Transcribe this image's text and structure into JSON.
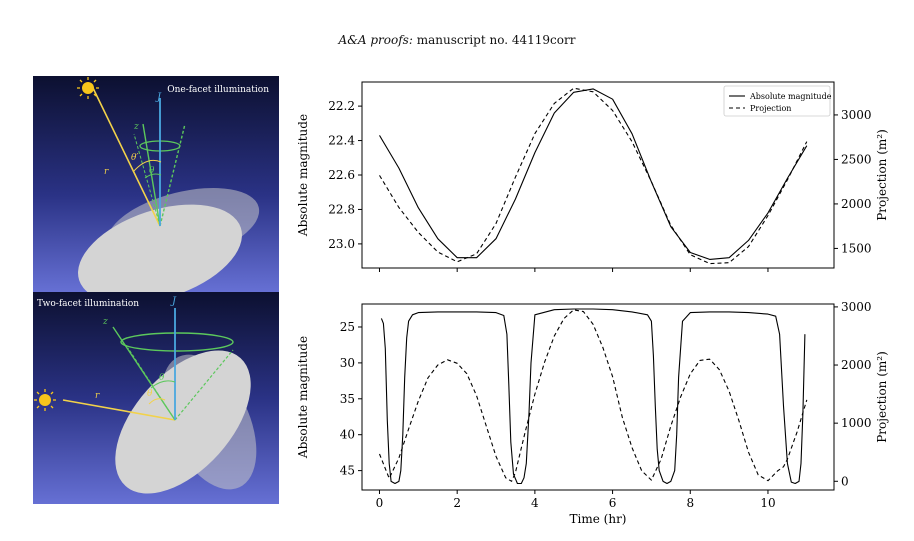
{
  "header": {
    "journal": "A&A proofs:",
    "manuscript": "manuscript no. 44119corr"
  },
  "illustrations": {
    "top": {
      "title": "One-facet illumination",
      "sun_vec": "r",
      "facet_vec": "z",
      "spin_vec": "J",
      "angle1": "θ′",
      "angle2": "θ",
      "colors": {
        "sun_ray": "#f2d24a",
        "spin": "#4aa8e0",
        "facet": "#5cc85c",
        "ellipsoid": "#d4d4d4"
      }
    },
    "bottom": {
      "title": "Two-facet illumination",
      "sun_vec": "r",
      "facet_vec": "z",
      "spin_vec": "J",
      "angle1": "θ",
      "angle2": "θ",
      "colors": {
        "sun_ray": "#f2d24a",
        "spin": "#4aa8e0",
        "facet": "#5cc85c",
        "ellipsoid": "#d4d4d4"
      }
    }
  },
  "chart_data": [
    {
      "type": "line",
      "xlim": [
        -0.45,
        11.7
      ],
      "ylabel_left": "Absolute magnitude",
      "ylabel_right": "Projection (m²)",
      "ylim_left": [
        23.14,
        22.06
      ],
      "ylim_right": [
        1280,
        3370
      ],
      "yticks_left": [
        "22.2",
        "22.4",
        "22.6",
        "22.8",
        "23.0"
      ],
      "yticks_left_values": [
        22.2,
        22.4,
        22.6,
        22.8,
        23.0
      ],
      "yticks_right": [
        "1500",
        "2000",
        "2500",
        "3000"
      ],
      "yticks_right_values": [
        1500,
        2000,
        2500,
        3000
      ],
      "legend": {
        "position": "top-right",
        "entries": [
          "Absolute magnitude",
          "Projection"
        ]
      },
      "series": [
        {
          "name": "Absolute magnitude",
          "axis": "left",
          "style": "solid",
          "x": [
            0,
            0.5,
            1,
            1.5,
            2,
            2.5,
            3,
            3.5,
            4,
            4.5,
            5,
            5.5,
            6,
            6.5,
            7,
            7.5,
            8,
            8.5,
            9,
            9.5,
            10,
            10.5,
            11
          ],
          "y": [
            22.37,
            22.56,
            22.79,
            22.97,
            23.08,
            23.08,
            22.97,
            22.74,
            22.47,
            22.24,
            22.12,
            22.1,
            22.16,
            22.36,
            22.64,
            22.9,
            23.05,
            23.09,
            23.08,
            22.98,
            22.82,
            22.62,
            22.43
          ]
        },
        {
          "name": "Projection",
          "axis": "right",
          "style": "dashed",
          "x": [
            0,
            0.5,
            1,
            1.5,
            2,
            2.5,
            3,
            3.5,
            4,
            4.5,
            5,
            5.5,
            6,
            6.5,
            7,
            7.5,
            8,
            8.5,
            9,
            9.5,
            10,
            10.5,
            11
          ],
          "y": [
            2320,
            1960,
            1680,
            1460,
            1350,
            1440,
            1780,
            2300,
            2790,
            3130,
            3300,
            3260,
            3050,
            2700,
            2250,
            1760,
            1430,
            1330,
            1340,
            1520,
            1870,
            2270,
            2700
          ]
        }
      ]
    },
    {
      "type": "line",
      "xlim": [
        -0.45,
        11.7
      ],
      "xlabel": "Time (hr)",
      "xticks": [
        "0",
        "2",
        "4",
        "6",
        "8",
        "10"
      ],
      "xticks_values": [
        0,
        2,
        4,
        6,
        8,
        10
      ],
      "ylabel_left": "Absolute magnitude",
      "ylabel_right": "Projection (m²)",
      "ylim_left": [
        47.7,
        21.8
      ],
      "ylim_right": [
        -150,
        3050
      ],
      "yticks_left": [
        "25",
        "30",
        "35",
        "40",
        "45"
      ],
      "yticks_left_values": [
        25,
        30,
        35,
        40,
        45
      ],
      "yticks_right": [
        "0",
        "1000",
        "2000",
        "3000"
      ],
      "yticks_right_values": [
        0,
        1000,
        2000,
        3000
      ],
      "series": [
        {
          "name": "Absolute magnitude",
          "axis": "left",
          "style": "solid",
          "x": [
            0.05,
            0.1,
            0.15,
            0.2,
            0.25,
            0.3,
            0.4,
            0.5,
            0.55,
            0.6,
            0.65,
            0.7,
            0.75,
            0.85,
            1,
            1.5,
            2,
            2.5,
            3,
            3.2,
            3.28,
            3.33,
            3.38,
            3.45,
            3.55,
            3.65,
            3.72,
            3.78,
            3.85,
            3.9,
            4,
            4.5,
            5,
            5.5,
            6,
            6.5,
            6.9,
            7.0,
            7.05,
            7.1,
            7.15,
            7.2,
            7.3,
            7.4,
            7.5,
            7.6,
            7.65,
            7.7,
            7.8,
            8,
            8.5,
            9,
            9.5,
            10,
            10.2,
            10.3,
            10.4,
            10.5,
            10.6,
            10.7,
            10.8,
            10.85,
            10.9,
            10.95
          ],
          "y": [
            23.8,
            24.5,
            28,
            38,
            44,
            46.5,
            46.8,
            46.5,
            45,
            40,
            32,
            26.5,
            24.2,
            23.3,
            23,
            22.9,
            22.9,
            22.9,
            23,
            23.4,
            26,
            33,
            41,
            45.5,
            46.8,
            46.8,
            46,
            44,
            37,
            30,
            23.3,
            22.6,
            22.5,
            22.5,
            22.6,
            22.9,
            23.3,
            24.2,
            29,
            36,
            42,
            45,
            46.5,
            46.8,
            46.5,
            45,
            40,
            32,
            24.2,
            23,
            22.9,
            22.9,
            23,
            23.2,
            23.5,
            26,
            36,
            44,
            46.6,
            46.8,
            46.5,
            44,
            37,
            26
          ]
        },
        {
          "name": "Projection",
          "axis": "right",
          "style": "dashed",
          "x": [
            0,
            0.25,
            0.5,
            0.75,
            1,
            1.25,
            1.5,
            1.75,
            2,
            2.25,
            2.5,
            2.75,
            3,
            3.25,
            3.4,
            3.5,
            3.75,
            4,
            4.25,
            4.5,
            4.75,
            5,
            5.25,
            5.5,
            5.75,
            6,
            6.25,
            6.5,
            6.75,
            7,
            7.25,
            7.5,
            7.75,
            8,
            8.25,
            8.5,
            8.75,
            9,
            9.25,
            9.5,
            9.75,
            10,
            10.25,
            10.4,
            10.5,
            10.75,
            11
          ],
          "y": [
            470,
            50,
            400,
            900,
            1380,
            1780,
            2000,
            2090,
            2030,
            1850,
            1470,
            950,
            430,
            60,
            0,
            150,
            850,
            1500,
            2050,
            2500,
            2800,
            2950,
            2920,
            2700,
            2300,
            1800,
            1100,
            580,
            180,
            20,
            380,
            950,
            1450,
            1850,
            2080,
            2100,
            1920,
            1550,
            1050,
            500,
            110,
            10,
            180,
            250,
            380,
            850,
            1400
          ]
        }
      ]
    }
  ]
}
